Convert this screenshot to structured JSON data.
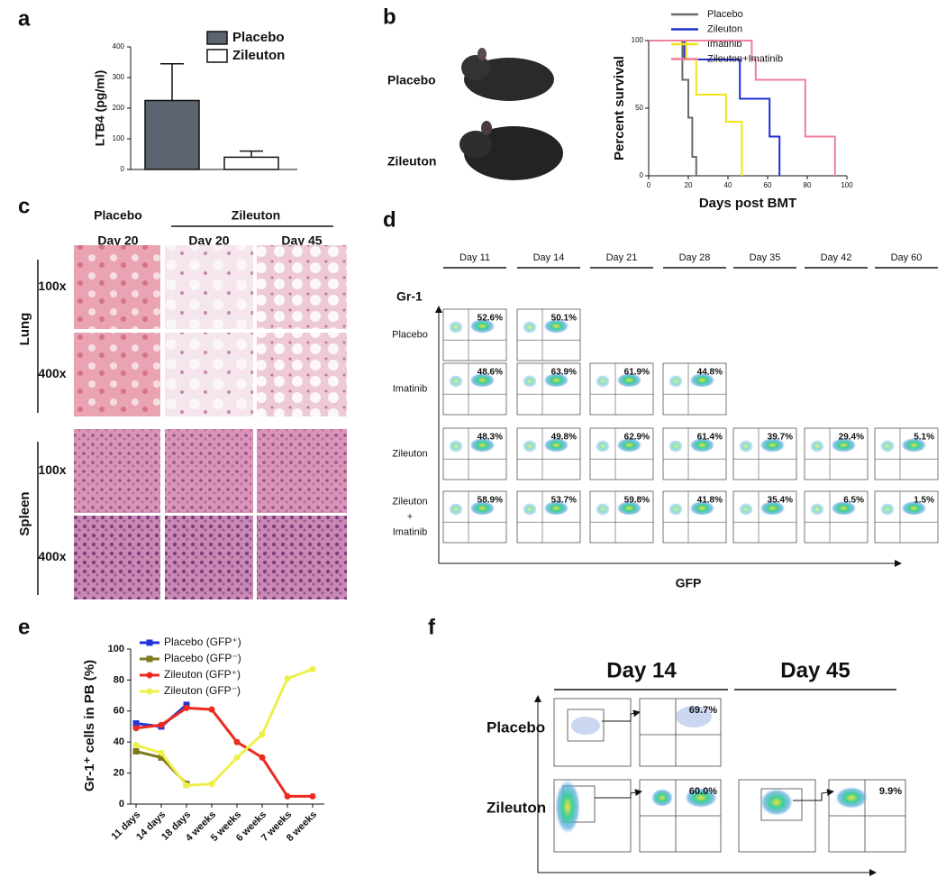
{
  "chart_data": [
    {
      "type": "bar",
      "label": "a",
      "ylabel": "LTB4 (pg/ml)",
      "ylim": [
        0,
        400
      ],
      "yticks": [
        0,
        100,
        200,
        300,
        400
      ],
      "series": [
        {
          "name": "Placebo",
          "color": "#5b6470",
          "values": [
            225
          ],
          "errors": [
            120
          ]
        },
        {
          "name": "Zileuton",
          "color": "#ffffff",
          "values": [
            40
          ],
          "errors": [
            20
          ]
        }
      ]
    },
    {
      "type": "step",
      "label": "b",
      "xlabel": "Days post BMT",
      "ylabel": "Percent survival",
      "xlim": [
        0,
        100
      ],
      "xticks": [
        0,
        20,
        40,
        60,
        80,
        100
      ],
      "ylim": [
        0,
        100
      ],
      "yticks": [
        0,
        50,
        100
      ],
      "series": [
        {
          "name": "Placebo",
          "color": "#6b6b6b",
          "x": [
            0,
            17,
            20,
            22,
            24
          ],
          "values": [
            100,
            71,
            43,
            14,
            0
          ]
        },
        {
          "name": "Zileuton",
          "color": "#1f2fd0",
          "x": [
            0,
            18,
            46,
            61,
            66
          ],
          "values": [
            100,
            86,
            57,
            29,
            0
          ]
        },
        {
          "name": "Imatinib",
          "color": "#f2e21a",
          "x": [
            0,
            19,
            24,
            39,
            47
          ],
          "values": [
            100,
            86,
            60,
            40,
            0
          ]
        },
        {
          "name": "Zileuton+Imatinib",
          "color": "#ef7f9a",
          "x": [
            0,
            52,
            54,
            79,
            94
          ],
          "values": [
            100,
            86,
            71,
            29,
            0
          ]
        }
      ]
    },
    {
      "type": "line",
      "label": "e",
      "ylabel": "Gr-1⁺ cells in PB (%)",
      "categories": [
        "11 days",
        "14 days",
        "18 days",
        "4 weeks",
        "5 weeks",
        "6 weeks",
        "7 weeks",
        "8 weeks"
      ],
      "ylim": [
        0,
        100
      ],
      "yticks": [
        0,
        20,
        40,
        60,
        80,
        100
      ],
      "series": [
        {
          "name": "Placebo (GFP⁺)",
          "color": "#2233dd",
          "marker": "square",
          "values": [
            52,
            50,
            64,
            null,
            null,
            null,
            null,
            null
          ]
        },
        {
          "name": "Placebo (GFP⁻)",
          "color": "#7d7a1c",
          "marker": "square",
          "values": [
            34,
            30,
            13,
            null,
            null,
            null,
            null,
            null
          ]
        },
        {
          "name": "Zileuton (GFP⁺)",
          "color": "#ee2a1e",
          "marker": "circle",
          "values": [
            49,
            51,
            62,
            61,
            40,
            30,
            5,
            5
          ]
        },
        {
          "name": "Zileuton (GFP⁻)",
          "color": "#eef04a",
          "marker": "circle",
          "values": [
            38,
            33,
            12,
            13,
            30,
            45,
            81,
            87
          ]
        }
      ]
    }
  ],
  "panel_b_photos": {
    "labels": [
      "Placebo",
      "Zileuton"
    ]
  },
  "panel_c": {
    "label": "c",
    "groups": [
      "Placebo",
      "Zileuton"
    ],
    "columns": [
      "Day 20",
      "Day 20",
      "Day 45"
    ],
    "tissues": [
      "Lung",
      "Spleen"
    ],
    "magnifications": [
      "100x",
      "400x",
      "100x",
      "400x"
    ]
  },
  "panel_d": {
    "label": "d",
    "y_axis": "Gr-1",
    "x_axis": "GFP",
    "days": [
      "Day 11",
      "Day 14",
      "Day 21",
      "Day 28",
      "Day 35",
      "Day 42",
      "Day 60"
    ],
    "rows": [
      {
        "name": [
          "Placebo"
        ],
        "percents": [
          "52.6%",
          "50.1%"
        ]
      },
      {
        "name": [
          "Imatinib"
        ],
        "percents": [
          "48.6%",
          "63.9%",
          "61.9%",
          "44.8%"
        ]
      },
      {
        "name": [
          "Zileuton"
        ],
        "percents": [
          "48.3%",
          "49.8%",
          "62.9%",
          "61.4%",
          "39.7%",
          "29.4%",
          "5.1%"
        ]
      },
      {
        "name": [
          "Zileuton",
          "+",
          "Imatinib"
        ],
        "percents": [
          "58.9%",
          "53.7%",
          "59.8%",
          "41.8%",
          "35.4%",
          "6.5%",
          "1.5%"
        ]
      }
    ]
  },
  "panel_f": {
    "label": "f",
    "days": [
      "Day 14",
      "Day 45"
    ],
    "rows": [
      "Placebo",
      "Zileuton"
    ],
    "percents": [
      "69.7%",
      "60.0%",
      "9.9%"
    ]
  }
}
